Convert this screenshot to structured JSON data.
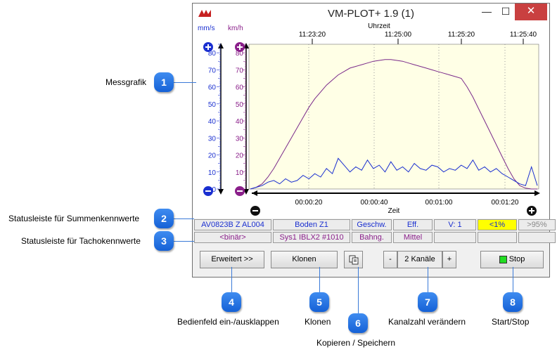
{
  "window": {
    "title": "VM-PLOT+ 1.9 (1)",
    "minimize": "—",
    "maximize": "☐",
    "close": "✕"
  },
  "plot": {
    "unit_left": "mm/s",
    "unit_right": "km/h",
    "top_axis_title": "Uhrzeit",
    "top_ticks": [
      "11:23:20",
      "11:25:00",
      "11:25:20",
      "11:25:40"
    ],
    "bottom_axis_title": "Zeit",
    "bottom_ticks": [
      "00:00:20",
      "00:00:40",
      "00:01:00",
      "00:01:20"
    ],
    "y_ticks": [
      "80",
      "70",
      "60",
      "50",
      "40",
      "30",
      "20",
      "10",
      "0"
    ],
    "colors": {
      "left_axis": "#1a2fd0",
      "right_axis": "#8a1f8a",
      "background": "#ffffe6"
    }
  },
  "chart_data": {
    "type": "line",
    "x_label": "Zeit",
    "ylim": [
      0,
      85
    ],
    "series": [
      {
        "axis": "right",
        "values": [
          0,
          1,
          3,
          7,
          12,
          18,
          24,
          30,
          36,
          42,
          48,
          53,
          57,
          61,
          64,
          67,
          69,
          71,
          72,
          73,
          74,
          75,
          75.5,
          76,
          76,
          75.5,
          75,
          74,
          73,
          72,
          71,
          70,
          69,
          68,
          67,
          66,
          65,
          60,
          54,
          47,
          40,
          33,
          26,
          19,
          12,
          6,
          2,
          0.5,
          0,
          0
        ]
      },
      {
        "axis": "left",
        "values": [
          0,
          1,
          2,
          4,
          5,
          3,
          6,
          4,
          5,
          8,
          6,
          9,
          7,
          12,
          9,
          18,
          14,
          10,
          13,
          11,
          17,
          12,
          14,
          10,
          16,
          11,
          13,
          10,
          15,
          12,
          11,
          14,
          13,
          10,
          12,
          11,
          14,
          12,
          17,
          11,
          13,
          10,
          12,
          9,
          7,
          5,
          3,
          2,
          13,
          2
        ]
      }
    ]
  },
  "status_sum": [
    "AV0823B Z AL004",
    "Boden Z1",
    "Geschw.",
    "Eff.",
    "V: 1",
    "<1%",
    ">95%"
  ],
  "status_tacho": [
    "<binär>",
    "Sys1 IBLX2 #1010",
    "Bahng.",
    "Mittel",
    "",
    "",
    ""
  ],
  "controls": {
    "expand": "Erweitert >>",
    "clone": "Klonen",
    "copy_icon": "copy-icon",
    "minus": "-",
    "channels": "2 Kanäle",
    "plus": "+",
    "stop": "Stop"
  },
  "callouts": {
    "c1": {
      "num": "1",
      "label": "Messgrafik"
    },
    "c2": {
      "num": "2",
      "label": "Statusleiste für Summenkennwerte"
    },
    "c3": {
      "num": "3",
      "label": "Statusleiste für Tachokennwerte"
    },
    "c4": {
      "num": "4",
      "label": "Bedienfeld ein-/ausklappen"
    },
    "c5": {
      "num": "5",
      "label": "Klonen"
    },
    "c6": {
      "num": "6",
      "label": "Kopieren / Speichern"
    },
    "c7": {
      "num": "7",
      "label": "Kanalzahl verändern"
    },
    "c8": {
      "num": "8",
      "label": "Start/Stop"
    }
  }
}
